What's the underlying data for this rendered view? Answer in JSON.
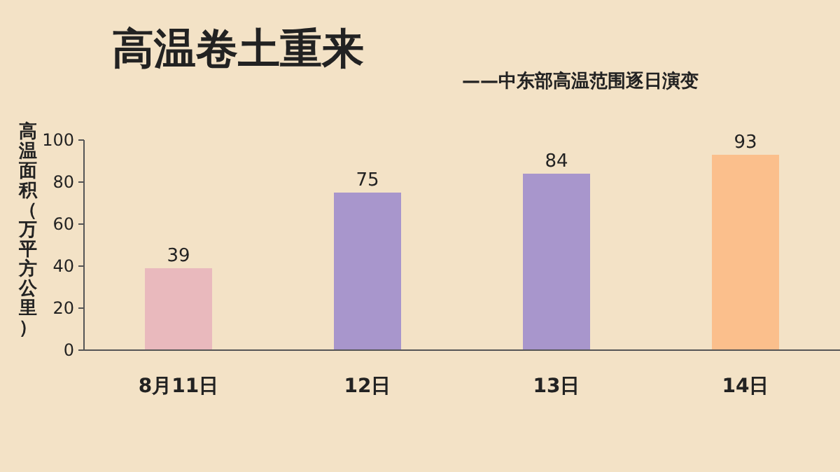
{
  "chart_data": {
    "type": "bar",
    "title": "高温卷土重来",
    "subtitle": "——中东部高温范围逐日演变",
    "ylabel": "高温面积（万平方公里）",
    "categories": [
      "8月11日",
      "12日",
      "13日",
      "14日"
    ],
    "values": [
      39,
      75,
      84,
      93
    ],
    "colors": [
      "#e9b9bd",
      "#a896cc",
      "#a896cc",
      "#fbbf8c"
    ],
    "ylim": [
      0,
      100
    ],
    "yticks": [
      0,
      20,
      40,
      60,
      80,
      100
    ],
    "data_labels": true
  }
}
